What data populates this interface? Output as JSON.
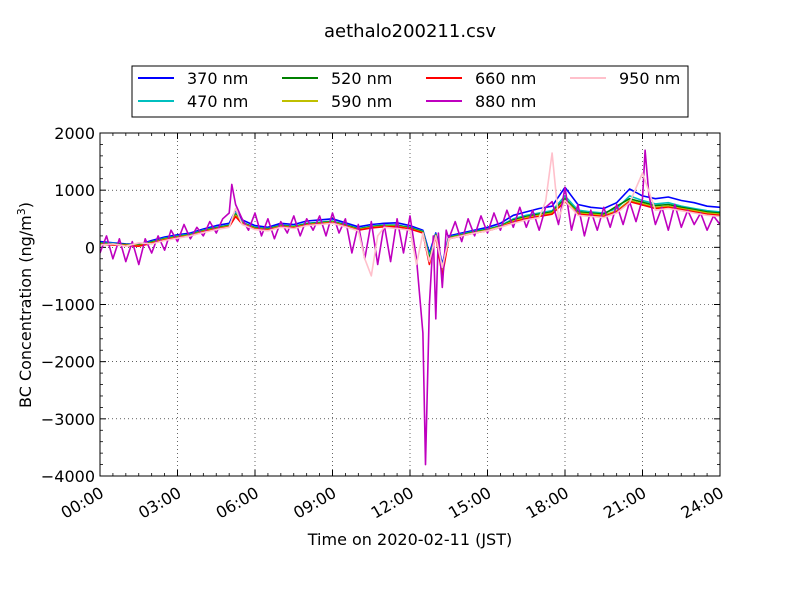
{
  "chart_data": {
    "type": "line",
    "title": "aethalo200211.csv",
    "xlabel": "Time on 2020-02-11 (JST)",
    "ylabel_main": "BC Concentration (ng/m",
    "ylabel_sup": "3",
    "ylabel_tail": ")",
    "xlim": [
      0,
      24
    ],
    "ylim": [
      -4000,
      2000
    ],
    "x_ticks": [
      {
        "value": 0,
        "label": "00:00"
      },
      {
        "value": 3,
        "label": "03:00"
      },
      {
        "value": 6,
        "label": "06:00"
      },
      {
        "value": 9,
        "label": "09:00"
      },
      {
        "value": 12,
        "label": "12:00"
      },
      {
        "value": 15,
        "label": "15:00"
      },
      {
        "value": 18,
        "label": "18:00"
      },
      {
        "value": 21,
        "label": "21:00"
      },
      {
        "value": 24,
        "label": "24:00"
      }
    ],
    "y_ticks": [
      {
        "value": 2000,
        "label": "2000"
      },
      {
        "value": 1000,
        "label": "1000"
      },
      {
        "value": 0,
        "label": "0"
      },
      {
        "value": -1000,
        "label": "−1000"
      },
      {
        "value": -2000,
        "label": "−2000"
      },
      {
        "value": -3000,
        "label": "−3000"
      },
      {
        "value": -4000,
        "label": "−4000"
      }
    ],
    "grid": true,
    "legend_position": "top",
    "series": [
      {
        "name": "370 nm",
        "color": "#0000ff",
        "x": [
          0,
          0.5,
          1,
          1.5,
          2,
          2.5,
          3,
          3.5,
          4,
          4.5,
          5,
          5.25,
          5.5,
          6,
          6.5,
          7,
          7.5,
          8,
          8.5,
          9,
          9.5,
          10,
          10.5,
          11,
          11.5,
          12,
          12.5,
          12.75,
          13,
          13.25,
          13.5,
          14,
          14.5,
          15,
          15.5,
          16,
          16.5,
          17,
          17.5,
          18,
          18.5,
          19,
          19.5,
          20,
          20.5,
          21,
          21.5,
          22,
          22.5,
          23,
          23.5,
          24
        ],
        "y": [
          100,
          80,
          60,
          50,
          120,
          180,
          220,
          250,
          320,
          380,
          420,
          650,
          480,
          380,
          350,
          420,
          400,
          460,
          480,
          500,
          430,
          360,
          400,
          420,
          430,
          380,
          300,
          -100,
          250,
          -300,
          200,
          250,
          300,
          350,
          420,
          560,
          620,
          680,
          720,
          1050,
          750,
          700,
          680,
          780,
          1020,
          900,
          850,
          880,
          820,
          780,
          720,
          700
        ]
      },
      {
        "name": "470 nm",
        "color": "#00bfbf",
        "x": [
          0,
          0.5,
          1,
          1.5,
          2,
          2.5,
          3,
          3.5,
          4,
          4.5,
          5,
          5.25,
          5.5,
          6,
          6.5,
          7,
          7.5,
          8,
          8.5,
          9,
          9.5,
          10,
          10.5,
          11,
          11.5,
          12,
          12.5,
          12.75,
          13,
          13.25,
          13.5,
          14,
          14.5,
          15,
          15.5,
          16,
          16.5,
          17,
          17.5,
          18,
          18.5,
          19,
          19.5,
          20,
          20.5,
          21,
          21.5,
          22,
          22.5,
          23,
          23.5,
          24
        ],
        "y": [
          80,
          70,
          50,
          40,
          100,
          160,
          200,
          230,
          300,
          350,
          390,
          600,
          440,
          350,
          330,
          390,
          370,
          420,
          440,
          460,
          400,
          330,
          370,
          390,
          390,
          350,
          280,
          -150,
          230,
          -350,
          180,
          230,
          280,
          320,
          380,
          500,
          560,
          600,
          640,
          900,
          650,
          620,
          600,
          680,
          900,
          820,
          760,
          780,
          720,
          680,
          640,
          620
        ]
      },
      {
        "name": "520 nm",
        "color": "#008000",
        "x": [
          0,
          0.5,
          1,
          1.5,
          2,
          2.5,
          3,
          3.5,
          4,
          4.5,
          5,
          5.25,
          5.5,
          6,
          6.5,
          7,
          7.5,
          8,
          8.5,
          9,
          9.5,
          10,
          10.5,
          11,
          11.5,
          12,
          12.5,
          12.75,
          13,
          13.25,
          13.5,
          14,
          14.5,
          15,
          15.5,
          16,
          16.5,
          17,
          17.5,
          18,
          18.5,
          19,
          19.5,
          20,
          20.5,
          21,
          21.5,
          22,
          22.5,
          23,
          23.5,
          24
        ],
        "y": [
          70,
          60,
          50,
          40,
          90,
          150,
          190,
          220,
          290,
          340,
          380,
          580,
          430,
          340,
          320,
          380,
          360,
          410,
          430,
          450,
          390,
          320,
          360,
          380,
          380,
          340,
          270,
          -200,
          220,
          -400,
          170,
          220,
          270,
          310,
          370,
          480,
          540,
          580,
          620,
          850,
          620,
          600,
          580,
          720,
          850,
          790,
          730,
          750,
          700,
          660,
          620,
          600
        ]
      },
      {
        "name": "590 nm",
        "color": "#bfbf00",
        "x": [
          0,
          0.5,
          1,
          1.5,
          2,
          2.5,
          3,
          3.5,
          4,
          4.5,
          5,
          5.25,
          5.5,
          6,
          6.5,
          7,
          7.5,
          8,
          8.5,
          9,
          9.5,
          10,
          10.5,
          11,
          11.5,
          12,
          12.5,
          12.75,
          13,
          13.25,
          13.5,
          14,
          14.5,
          15,
          15.5,
          16,
          16.5,
          17,
          17.5,
          18,
          18.5,
          19,
          19.5,
          20,
          20.5,
          21,
          21.5,
          22,
          22.5,
          23,
          23.5,
          24
        ],
        "y": [
          60,
          50,
          40,
          30,
          80,
          140,
          180,
          210,
          280,
          330,
          370,
          560,
          420,
          330,
          310,
          370,
          350,
          400,
          420,
          440,
          380,
          310,
          350,
          370,
          370,
          330,
          260,
          -250,
          210,
          -450,
          160,
          210,
          260,
          300,
          360,
          460,
          520,
          560,
          600,
          820,
          600,
          580,
          560,
          640,
          820,
          760,
          700,
          720,
          680,
          640,
          600,
          580
        ]
      },
      {
        "name": "660 nm",
        "color": "#ff0000",
        "x": [
          0,
          0.5,
          1,
          1.5,
          2,
          2.5,
          3,
          3.5,
          4,
          4.5,
          5,
          5.25,
          5.5,
          6,
          6.5,
          7,
          7.5,
          8,
          8.5,
          9,
          9.5,
          10,
          10.5,
          11,
          11.5,
          12,
          12.5,
          12.75,
          13,
          13.25,
          13.5,
          14,
          14.5,
          15,
          15.5,
          16,
          16.5,
          17,
          17.5,
          18,
          18.5,
          19,
          19.5,
          20,
          20.5,
          21,
          21.5,
          22,
          22.5,
          23,
          23.5,
          24
        ],
        "y": [
          50,
          40,
          30,
          20,
          70,
          130,
          170,
          200,
          270,
          320,
          360,
          540,
          410,
          320,
          300,
          360,
          340,
          390,
          410,
          430,
          370,
          300,
          340,
          360,
          360,
          320,
          250,
          -300,
          200,
          -500,
          150,
          200,
          250,
          290,
          350,
          440,
          500,
          540,
          580,
          800,
          580,
          560,
          540,
          620,
          800,
          740,
          680,
          700,
          660,
          620,
          580,
          560
        ]
      },
      {
        "name": "880 nm",
        "color": "#bf00bf",
        "x": [
          0,
          0.25,
          0.5,
          0.75,
          1,
          1.25,
          1.5,
          1.75,
          2,
          2.25,
          2.5,
          2.75,
          3,
          3.25,
          3.5,
          3.75,
          4,
          4.25,
          4.5,
          4.75,
          5,
          5.1,
          5.25,
          5.5,
          5.75,
          6,
          6.25,
          6.5,
          6.75,
          7,
          7.25,
          7.5,
          7.75,
          8,
          8.25,
          8.5,
          8.75,
          9,
          9.25,
          9.5,
          9.75,
          10,
          10.25,
          10.5,
          10.75,
          11,
          11.25,
          11.5,
          11.75,
          12,
          12.25,
          12.5,
          12.6,
          12.75,
          12.9,
          13,
          13.1,
          13.25,
          13.4,
          13.5,
          13.75,
          14,
          14.25,
          14.5,
          14.75,
          15,
          15.25,
          15.5,
          15.75,
          16,
          16.25,
          16.5,
          16.75,
          17,
          17.25,
          17.5,
          17.75,
          18,
          18.25,
          18.5,
          18.75,
          19,
          19.25,
          19.5,
          19.75,
          20,
          20.25,
          20.5,
          20.75,
          21,
          21.1,
          21.25,
          21.5,
          21.75,
          22,
          22.25,
          22.5,
          22.75,
          23,
          23.25,
          23.5,
          23.75,
          24
        ],
        "y": [
          -100,
          200,
          -200,
          150,
          -250,
          100,
          -300,
          150,
          -100,
          200,
          -50,
          300,
          100,
          400,
          150,
          350,
          200,
          450,
          250,
          500,
          600,
          1100,
          750,
          500,
          300,
          600,
          200,
          500,
          150,
          450,
          250,
          550,
          200,
          500,
          300,
          550,
          200,
          600,
          250,
          500,
          -100,
          400,
          -200,
          450,
          -300,
          400,
          -250,
          500,
          -100,
          550,
          -200,
          -1500,
          -3800,
          -1000,
          200,
          -1250,
          250,
          -700,
          300,
          150,
          450,
          100,
          500,
          200,
          550,
          250,
          600,
          300,
          650,
          350,
          700,
          350,
          650,
          300,
          700,
          800,
          400,
          1050,
          300,
          750,
          200,
          650,
          300,
          700,
          350,
          750,
          400,
          800,
          450,
          850,
          1700,
          900,
          400,
          700,
          300,
          750,
          350,
          650,
          400,
          600,
          300,
          550,
          400
        ]
      },
      {
        "name": "950 nm",
        "color": "#ffc0cb",
        "x": [
          0,
          0.5,
          1,
          1.5,
          2,
          2.5,
          3,
          3.5,
          4,
          4.5,
          5,
          5.25,
          5.5,
          6,
          6.5,
          7,
          7.5,
          8,
          8.5,
          9,
          9.5,
          10,
          10.25,
          10.5,
          10.75,
          11,
          11.5,
          12,
          12.25,
          12.5,
          12.75,
          13,
          13.25,
          13.5,
          14,
          14.5,
          15,
          15.5,
          16,
          16.5,
          17,
          17.25,
          17.5,
          17.75,
          18,
          18.5,
          19,
          19.5,
          20,
          20.5,
          21,
          21.5,
          22,
          22.5,
          23,
          23.5,
          24
        ],
        "y": [
          40,
          60,
          20,
          80,
          60,
          120,
          160,
          200,
          260,
          310,
          350,
          680,
          400,
          310,
          290,
          350,
          330,
          380,
          400,
          420,
          360,
          290,
          -200,
          -500,
          200,
          350,
          330,
          300,
          -300,
          250,
          -250,
          200,
          -350,
          150,
          200,
          250,
          290,
          350,
          420,
          480,
          520,
          800,
          1650,
          500,
          820,
          560,
          540,
          520,
          600,
          780,
          1300,
          650,
          680,
          640,
          600,
          560,
          540
        ]
      }
    ]
  }
}
